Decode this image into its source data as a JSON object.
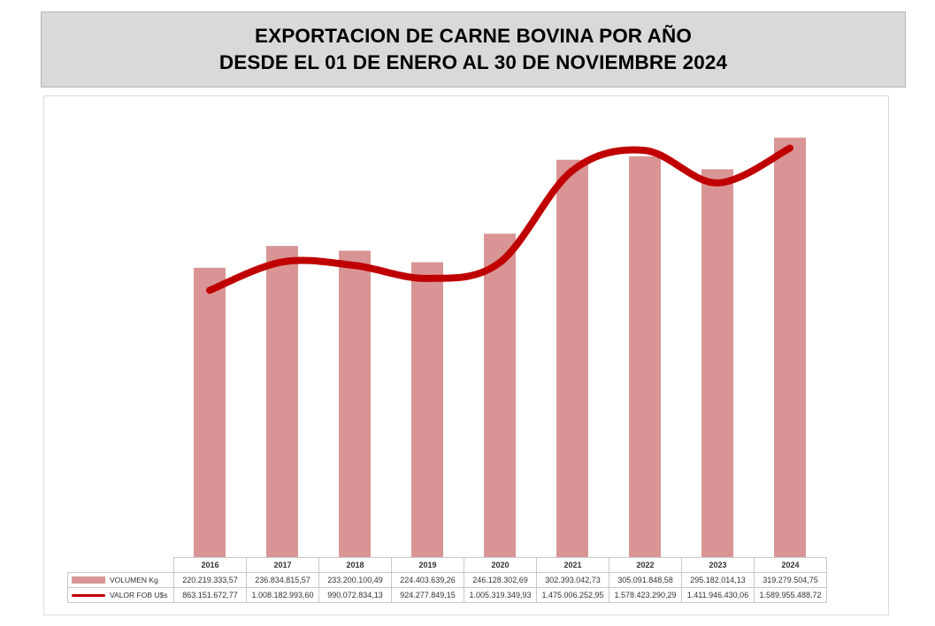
{
  "title": {
    "line1": "EXPORTACION DE CARNE BOVINA POR AÑO",
    "line2": "DESDE EL 01 DE ENERO AL 30 DE NOVIEMBRE 2024"
  },
  "colors": {
    "bar": "#d99595",
    "line": "#c00000"
  },
  "chart_data": {
    "type": "bar",
    "categories": [
      "2016",
      "2017",
      "2018",
      "2019",
      "2020",
      "2021",
      "2022",
      "2023",
      "2024"
    ],
    "series": [
      {
        "name": "VOLUMEN Kg",
        "type": "bar",
        "values": [
          220219333.57,
          236834815.57,
          233200100.49,
          224403639.26,
          246128302.69,
          302393042.73,
          305091848.58,
          295182014.13,
          319279504.75
        ],
        "labels": [
          "220.219.333,57",
          "236.834.815,57",
          "233.200.100,49",
          "224.403.639,26",
          "246.128.302,69",
          "302.393.042,73",
          "305.091.848,58",
          "295.182.014,13",
          "319.279.504,75"
        ]
      },
      {
        "name": "VALOR FOB U$s",
        "type": "line",
        "values": [
          863151672.77,
          1008182993.6,
          990072834.13,
          924277849.15,
          1005319349.93,
          1475006252.95,
          1578423290.29,
          1411946430.06,
          1589955488.72
        ],
        "labels": [
          "863.151.672,77",
          "1.008.182.993,60",
          "990.072.834,13",
          "924.277.849,15",
          "1.005.319.349,93",
          "1.475.006.252,95",
          "1.578.423.290,29",
          "1.411.946.430,06",
          "1.589.955.488,72"
        ]
      }
    ],
    "bar_axis_range": [
      0,
      350000000
    ],
    "line_axis_range": [
      -500000000,
      1850000000
    ],
    "legend": "data-table",
    "grid": false
  }
}
